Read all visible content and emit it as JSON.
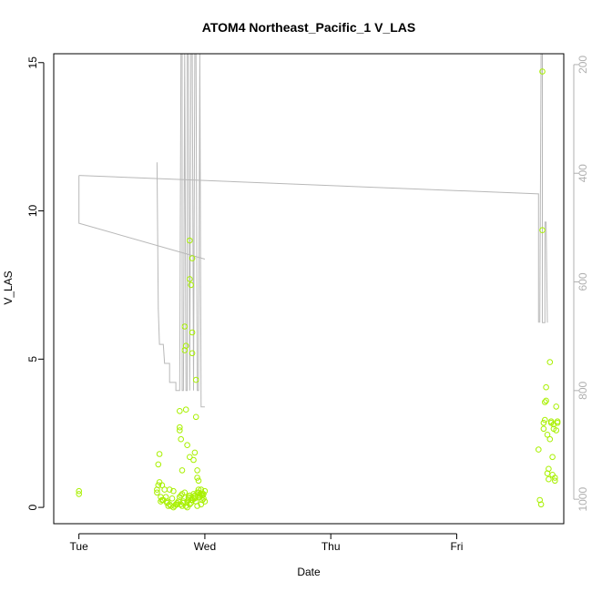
{
  "chart_data": {
    "type": "scatter",
    "title": "ATOM4 Northeast_Pacific_1 V_LAS",
    "xlabel": "Date",
    "ylabel": "V_LAS",
    "x_ticks": [
      {
        "label": "Tue",
        "value": 0
      },
      {
        "label": "Wed",
        "value": 1
      },
      {
        "label": "Thu",
        "value": 2
      },
      {
        "label": "Fri",
        "value": 3
      }
    ],
    "xlim": [
      -0.2,
      3.85
    ],
    "ylim": [
      -0.55,
      15.3
    ],
    "y_ticks": [
      0,
      5,
      10,
      15
    ],
    "y2_ticks": [
      200,
      400,
      600,
      800,
      1000
    ],
    "y2lim": [
      1045,
      180
    ],
    "y2_reversed": true,
    "grid": false,
    "point_color": "#a8f000",
    "line_color": "#b8b8b8",
    "series": [
      {
        "kind": "points",
        "x": [
          0.0,
          0.0,
          0.62,
          0.63,
          0.64,
          0.65,
          0.66,
          0.67,
          0.68,
          0.69,
          0.7,
          0.71,
          0.72,
          0.73,
          0.74,
          0.75,
          0.76,
          0.77,
          0.78,
          0.79,
          0.8,
          0.8,
          0.8,
          0.81,
          0.81,
          0.82,
          0.82,
          0.83,
          0.83,
          0.84,
          0.84,
          0.85,
          0.85,
          0.86,
          0.86,
          0.87,
          0.87,
          0.88,
          0.88,
          0.88,
          0.89,
          0.89,
          0.9,
          0.9,
          0.9,
          0.91,
          0.91,
          0.92,
          0.92,
          0.93,
          0.93,
          0.94,
          0.94,
          0.95,
          0.95,
          0.96,
          0.96,
          0.97,
          0.97,
          0.98,
          0.98,
          0.99,
          0.99,
          1.0,
          1.0,
          0.62,
          0.63,
          0.64,
          0.65,
          0.66,
          0.7,
          0.72,
          0.75,
          0.78,
          0.8,
          0.81,
          0.82,
          0.84,
          0.85,
          0.86,
          0.87,
          0.88,
          0.88,
          0.89,
          0.9,
          0.91,
          0.92,
          0.92,
          0.93,
          0.94,
          0.94,
          0.95,
          0.96,
          0.97,
          0.98,
          3.65,
          3.66,
          3.67,
          3.68,
          3.68,
          3.69,
          3.69,
          3.7,
          3.7,
          3.71,
          3.71,
          3.72,
          3.72,
          3.73,
          3.73,
          3.74,
          3.74,
          3.75,
          3.75,
          3.76,
          3.76,
          3.77,
          3.77,
          3.78,
          3.78,
          3.79,
          3.79,
          3.8,
          3.8
        ],
        "y": [
          0.45,
          0.55,
          0.5,
          1.45,
          1.8,
          0.35,
          0.75,
          0.25,
          0.6,
          0.35,
          0.2,
          0.05,
          0.1,
          0.05,
          0.3,
          0.0,
          0.05,
          0.1,
          0.15,
          0.2,
          3.25,
          2.7,
          2.6,
          2.3,
          0.1,
          0.05,
          1.25,
          0.2,
          0.15,
          5.3,
          6.1,
          5.45,
          3.3,
          2.1,
          0.0,
          0.35,
          0.25,
          9.0,
          7.7,
          1.7,
          7.5,
          0.15,
          5.9,
          5.2,
          0.25,
          1.6,
          0.45,
          1.85,
          0.3,
          3.05,
          4.3,
          1.25,
          1.0,
          0.9,
          0.5,
          0.45,
          0.35,
          0.6,
          0.45,
          0.45,
          0.4,
          0.3,
          0.45,
          0.55,
          0.2,
          0.6,
          0.75,
          0.85,
          0.2,
          0.25,
          0.15,
          0.6,
          0.55,
          0.1,
          0.35,
          0.4,
          0.45,
          0.5,
          0.05,
          0.2,
          0.3,
          0.1,
          0.4,
          0.25,
          8.4,
          0.3,
          0.35,
          0.4,
          0.2,
          0.5,
          0.05,
          0.6,
          0.4,
          0.1,
          0.25,
          1.95,
          0.25,
          0.1,
          14.7,
          9.35,
          2.85,
          2.65,
          2.95,
          3.55,
          4.05,
          3.6,
          2.45,
          1.15,
          0.95,
          1.3,
          2.3,
          4.9,
          2.9,
          2.85,
          1.7,
          1.1,
          2.65,
          2.8,
          1.0,
          0.9,
          3.4,
          2.6,
          2.85,
          2.9
        ]
      },
      {
        "kind": "line",
        "x": [
          0.0,
          0.0,
          1.0,
          1.0
        ],
        "y2": [
          404,
          492,
          558,
          558
        ]
      },
      {
        "kind": "line",
        "x": [
          0.0,
          3.65,
          3.65
        ],
        "y2": [
          404,
          438,
          675
        ]
      },
      {
        "kind": "line",
        "x": [
          0.62,
          0.63,
          0.64,
          0.67,
          0.68,
          0.72,
          0.72,
          0.77,
          0.77,
          0.8,
          0.81,
          0.82,
          0.82,
          0.83,
          0.84,
          0.85,
          0.86,
          0.86,
          0.87,
          0.88,
          0.89,
          0.9,
          0.91,
          0.91,
          0.92,
          0.93,
          0.94,
          0.95,
          0.96,
          0.97,
          0.98,
          0.99,
          1.0
        ],
        "y2": [
          380,
          650,
          715,
          715,
          750,
          750,
          785,
          785,
          800,
          800,
          180,
          180,
          800,
          800,
          180,
          800,
          800,
          180,
          180,
          800,
          180,
          180,
          800,
          800,
          180,
          180,
          800,
          800,
          180,
          830,
          830,
          830,
          830
        ]
      },
      {
        "kind": "line",
        "x": [
          3.66,
          3.67,
          3.68,
          3.68,
          3.7,
          3.7,
          3.71,
          3.72,
          3.72
        ],
        "y2": [
          675,
          180,
          180,
          675,
          675,
          490,
          490,
          675,
          675
        ]
      }
    ]
  }
}
